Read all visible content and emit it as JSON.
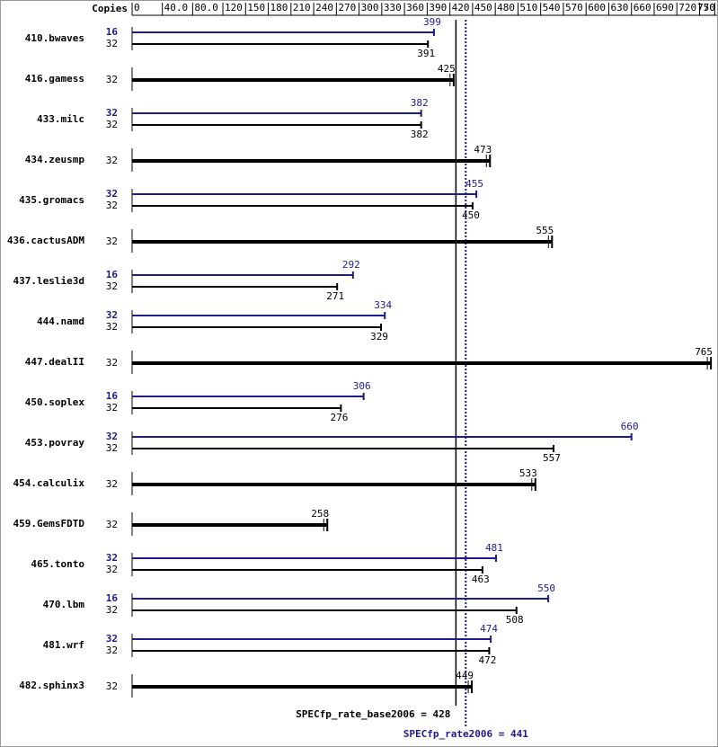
{
  "chart_data": {
    "type": "bar",
    "copies_title": "Copies",
    "categories": [
      "410.bwaves",
      "416.gamess",
      "433.milc",
      "434.zeusmp",
      "435.gromacs",
      "436.cactusADM",
      "437.leslie3d",
      "444.namd",
      "447.dealII",
      "450.soplex",
      "453.povray",
      "454.calculix",
      "459.GemsFDTD",
      "465.tonto",
      "470.lbm",
      "481.wrf",
      "482.sphinx3"
    ],
    "series": [
      {
        "color": "#1c1c8c",
        "copies": [
          16,
          null,
          32,
          null,
          32,
          null,
          16,
          32,
          null,
          16,
          32,
          null,
          null,
          32,
          16,
          32,
          null
        ],
        "values": [
          399,
          null,
          382,
          null,
          455,
          null,
          292,
          334,
          null,
          306,
          660,
          null,
          null,
          481,
          550,
          474,
          null
        ]
      },
      {
        "color": "#000000",
        "copies": [
          32,
          32,
          32,
          32,
          32,
          32,
          32,
          32,
          32,
          32,
          32,
          32,
          32,
          32,
          32,
          32,
          32
        ],
        "values": [
          391,
          425,
          382,
          473,
          450,
          555,
          271,
          329,
          765,
          276,
          557,
          533,
          258,
          463,
          508,
          472,
          449
        ]
      }
    ],
    "xlim": [
      0,
      770
    ],
    "xticks": [
      0,
      {
        "value": 40,
        "label": "40.0"
      },
      {
        "value": 80,
        "label": "80.0"
      },
      120,
      150,
      180,
      210,
      240,
      270,
      300,
      330,
      360,
      390,
      420,
      450,
      480,
      510,
      540,
      570,
      600,
      630,
      660,
      690,
      720,
      750,
      770
    ],
    "reference_lines": [
      {
        "value": 428,
        "label": "SPECfp_rate_base2006 = 428",
        "color": "#000000"
      },
      {
        "value": 441,
        "label": "SPECfp_rate2006 = 441",
        "color": "#1c1c8c",
        "dotted": true
      }
    ]
  }
}
